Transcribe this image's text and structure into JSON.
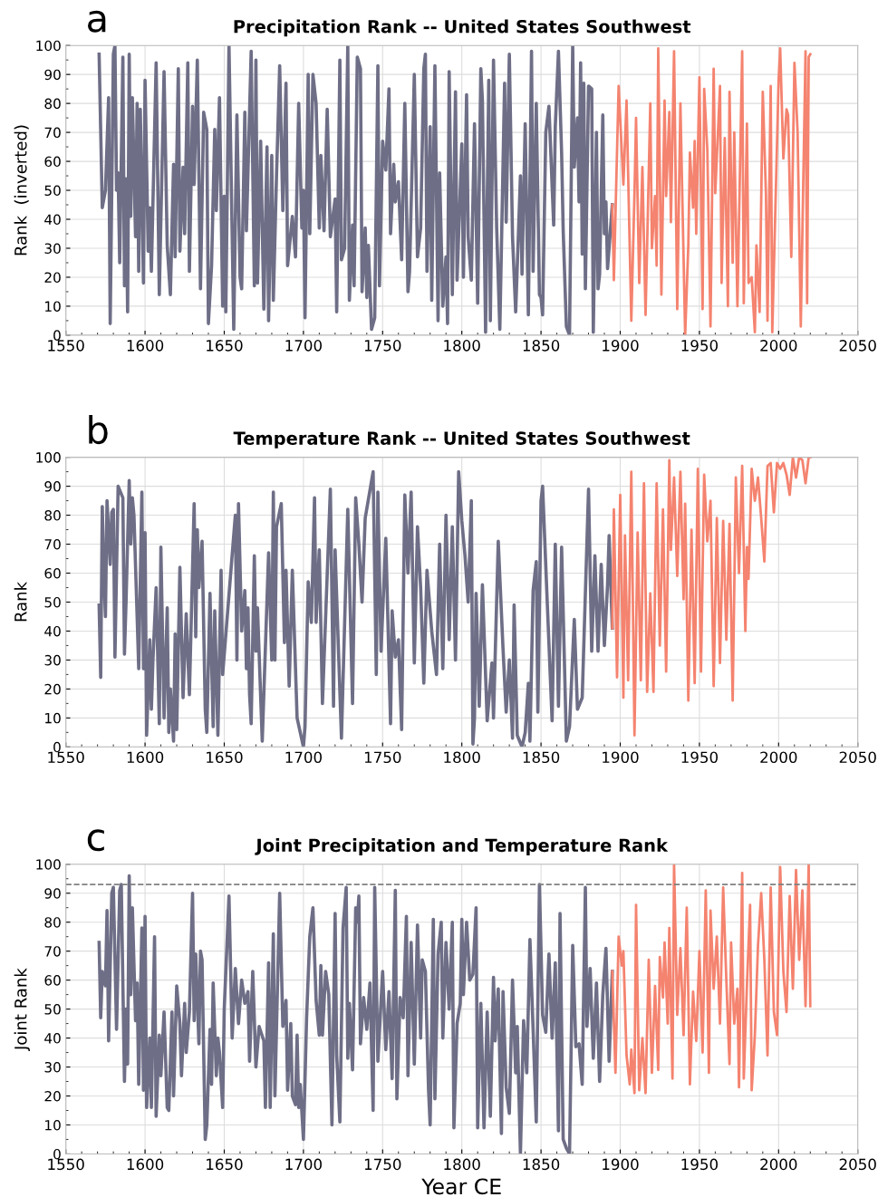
{
  "chart_data": [
    {
      "type": "line",
      "title": "Precipitation Rank -- United States Southwest",
      "ylabel": "Rank  (inverted)",
      "annotations": [
        "a"
      ],
      "xlim": [
        1550,
        2050
      ],
      "xticks": [
        1550,
        1600,
        1650,
        1700,
        1750,
        1800,
        1850,
        1900,
        1950,
        2000,
        2050
      ],
      "ylim": [
        0,
        100
      ],
      "yticks": [
        0,
        10,
        20,
        30,
        40,
        50,
        60,
        70,
        80,
        90,
        100
      ],
      "grid": true,
      "legend": false,
      "series": [
        {
          "color": "#6e6e87",
          "x": [
            1571,
            1573,
            1575,
            1577,
            1578,
            1580,
            1581,
            1582,
            1583,
            1584,
            1586,
            1587,
            1588,
            1589,
            1590,
            1591,
            1592,
            1594,
            1595,
            1596,
            1597,
            1599,
            1600,
            1602,
            1603,
            1604,
            1607,
            1609,
            1612,
            1614,
            1616,
            1618,
            1619,
            1621,
            1622,
            1624,
            1625,
            1627,
            1628,
            1630,
            1631,
            1633,
            1635,
            1637,
            1639,
            1640,
            1642,
            1644,
            1645,
            1647,
            1649,
            1650,
            1651,
            1653,
            1656,
            1658,
            1660,
            1661,
            1663,
            1664,
            1667,
            1669,
            1670,
            1671,
            1673,
            1675,
            1677,
            1678,
            1680,
            1681,
            1683,
            1685,
            1687,
            1689,
            1690,
            1693,
            1695,
            1697,
            1699,
            1700,
            1701,
            1703,
            1704,
            1706,
            1708,
            1710,
            1711,
            1713,
            1715,
            1717,
            1720,
            1721,
            1723,
            1724,
            1726,
            1728,
            1729,
            1731,
            1732,
            1734,
            1736,
            1737,
            1739,
            1740,
            1741,
            1743,
            1745,
            1747,
            1748,
            1750,
            1752,
            1754,
            1755,
            1757,
            1758,
            1760,
            1762,
            1764,
            1766,
            1767,
            1770,
            1772,
            1774,
            1776,
            1777,
            1778,
            1780,
            1781,
            1783,
            1785,
            1786,
            1788,
            1790,
            1791,
            1792,
            1794,
            1796,
            1797,
            1800,
            1801,
            1803,
            1804,
            1806,
            1808,
            1810,
            1812,
            1813,
            1815,
            1817,
            1818,
            1820,
            1822,
            1824,
            1827,
            1828,
            1830,
            1832,
            1834,
            1837,
            1838,
            1840,
            1842,
            1844,
            1845,
            1847,
            1849,
            1850,
            1851,
            1853,
            1855,
            1858,
            1859,
            1861,
            1863,
            1864,
            1866,
            1868,
            1870,
            1871,
            1873,
            1874,
            1875,
            1876,
            1877,
            1878,
            1880,
            1882,
            1883,
            1885,
            1886,
            1887,
            1889,
            1890,
            1891,
            1892,
            1895
          ],
          "values": [
            97,
            44,
            50,
            82,
            4,
            97,
            100,
            50,
            56,
            25,
            96,
            17,
            54,
            8,
            97,
            41,
            82,
            34,
            80,
            22,
            78,
            18,
            88,
            29,
            44,
            22,
            94,
            14,
            91,
            31,
            14,
            59,
            27,
            92,
            29,
            58,
            35,
            94,
            22,
            79,
            52,
            95,
            16,
            77,
            71,
            4,
            24,
            71,
            43,
            82,
            10,
            48,
            8,
            100,
            2,
            76,
            20,
            16,
            77,
            36,
            98,
            17,
            95,
            18,
            67,
            9,
            65,
            5,
            62,
            12,
            55,
            93,
            43,
            87,
            24,
            41,
            27,
            80,
            37,
            50,
            6,
            90,
            35,
            90,
            80,
            37,
            62,
            36,
            78,
            34,
            47,
            8,
            95,
            26,
            30,
            100,
            12,
            38,
            17,
            96,
            92,
            15,
            37,
            13,
            31,
            2,
            6,
            93,
            17,
            67,
            57,
            85,
            35,
            59,
            46,
            53,
            26,
            80,
            15,
            22,
            90,
            27,
            37,
            92,
            97,
            22,
            72,
            12,
            93,
            5,
            56,
            10,
            27,
            4,
            91,
            14,
            84,
            19,
            66,
            20,
            83,
            34,
            19,
            73,
            11,
            92,
            81,
            1,
            88,
            5,
            95,
            37,
            2,
            87,
            39,
            97,
            34,
            8,
            55,
            21,
            73,
            7,
            98,
            22,
            80,
            14,
            13,
            7,
            70,
            79,
            38,
            72,
            98,
            63,
            36,
            3,
            0,
            100,
            58,
            75,
            46,
            94,
            28,
            87,
            16,
            86,
            85,
            1,
            70,
            16,
            21,
            76,
            35,
            46,
            23,
            45
          ]
        },
        {
          "color": "#f4836f",
          "x": [
            1895,
            1896,
            1899,
            1902,
            1904,
            1907,
            1909,
            1910,
            1912,
            1914,
            1916,
            1919,
            1920,
            1922,
            1923,
            1924,
            1926,
            1928,
            1929,
            1931,
            1932,
            1934,
            1936,
            1938,
            1941,
            1943,
            1944,
            1946,
            1947,
            1948,
            1950,
            1952,
            1953,
            1955,
            1957,
            1959,
            1960,
            1963,
            1964,
            1966,
            1968,
            1969,
            1971,
            1972,
            1974,
            1977,
            1978,
            1980,
            1981,
            1983,
            1985,
            1986,
            1988,
            1990,
            1992,
            1993,
            1995,
            1996,
            2000,
            2001,
            2003,
            2005,
            2006,
            2008,
            2010,
            2012,
            2014,
            2017,
            2018,
            2019,
            2020
          ],
          "values": [
            45,
            19,
            86,
            52,
            81,
            5,
            49,
            75,
            18,
            58,
            7,
            80,
            30,
            48,
            24,
            99,
            14,
            81,
            48,
            77,
            39,
            98,
            9,
            80,
            0,
            31,
            63,
            44,
            67,
            35,
            89,
            9,
            85,
            64,
            3,
            92,
            49,
            86,
            18,
            68,
            10,
            84,
            25,
            70,
            10,
            98,
            11,
            73,
            18,
            20,
            1,
            31,
            8,
            84,
            49,
            5,
            86,
            1,
            88,
            99,
            61,
            78,
            76,
            27,
            94,
            70,
            3,
            98,
            11,
            96,
            97
          ]
        }
      ]
    },
    {
      "type": "line",
      "title": "Temperature Rank -- United States Southwest",
      "ylabel": "Rank",
      "annotations": [
        "b"
      ],
      "xlim": [
        1550,
        2050
      ],
      "xticks": [
        1550,
        1600,
        1650,
        1700,
        1750,
        1800,
        1850,
        1900,
        1950,
        2000,
        2050
      ],
      "ylim": [
        0,
        100
      ],
      "yticks": [
        0,
        10,
        20,
        30,
        40,
        50,
        60,
        70,
        80,
        90,
        100
      ],
      "grid": true,
      "legend": false,
      "series": [
        {
          "color": "#6e6e87",
          "x": [
            1571,
            1572,
            1573,
            1574,
            1575,
            1576,
            1578,
            1579,
            1580,
            1581,
            1583,
            1586,
            1587,
            1588,
            1590,
            1591,
            1592,
            1593,
            1595,
            1596,
            1598,
            1599,
            1600,
            1601,
            1603,
            1604,
            1605,
            1607,
            1609,
            1610,
            1612,
            1614,
            1615,
            1616,
            1618,
            1619,
            1620,
            1622,
            1624,
            1626,
            1628,
            1631,
            1632,
            1633,
            1634,
            1636,
            1638,
            1639,
            1641,
            1643,
            1644,
            1646,
            1648,
            1649,
            1657,
            1658,
            1659,
            1661,
            1663,
            1664,
            1665,
            1666,
            1667,
            1669,
            1670,
            1671,
            1674,
            1678,
            1680,
            1681,
            1682,
            1683,
            1686,
            1688,
            1689,
            1691,
            1693,
            1696,
            1700,
            1701,
            1703,
            1705,
            1707,
            1708,
            1710,
            1712,
            1717,
            1719,
            1720,
            1724,
            1728,
            1731,
            1733,
            1735,
            1737,
            1739,
            1744,
            1746,
            1747,
            1749,
            1752,
            1755,
            1756,
            1758,
            1760,
            1762,
            1764,
            1766,
            1768,
            1770,
            1772,
            1774,
            1776,
            1778,
            1781,
            1784,
            1786,
            1788,
            1790,
            1792,
            1794,
            1796,
            1798,
            1800,
            1802,
            1804,
            1806,
            1807,
            1808,
            1809,
            1811,
            1813,
            1816,
            1819,
            1820,
            1823,
            1826,
            1828,
            1830,
            1832,
            1833,
            1835,
            1838,
            1840,
            1842,
            1843,
            1845,
            1847,
            1848,
            1850,
            1851,
            1854,
            1857,
            1859,
            1861,
            1863,
            1866,
            1868,
            1871,
            1873,
            1876,
            1880,
            1882,
            1884,
            1886,
            1888,
            1890,
            1892,
            1893,
            1895
          ],
          "values": [
            49,
            24,
            83,
            60,
            45,
            85,
            63,
            81,
            82,
            31,
            90,
            86,
            32,
            50,
            92,
            70,
            86,
            80,
            45,
            27,
            88,
            27,
            74,
            4,
            37,
            13,
            30,
            55,
            8,
            69,
            10,
            48,
            5,
            20,
            2,
            39,
            6,
            62,
            17,
            46,
            18,
            84,
            38,
            75,
            55,
            71,
            13,
            5,
            53,
            7,
            47,
            4,
            61,
            25,
            80,
            30,
            84,
            40,
            54,
            27,
            48,
            18,
            8,
            66,
            33,
            48,
            2,
            67,
            30,
            88,
            30,
            76,
            84,
            36,
            61,
            21,
            61,
            10,
            0,
            7,
            57,
            43,
            86,
            43,
            68,
            15,
            89,
            14,
            68,
            3,
            82,
            15,
            86,
            70,
            50,
            79,
            95,
            25,
            88,
            33,
            72,
            8,
            47,
            31,
            37,
            6,
            87,
            60,
            88,
            29,
            76,
            55,
            22,
            61,
            40,
            25,
            70,
            27,
            80,
            37,
            76,
            30,
            95,
            78,
            66,
            50,
            85,
            1,
            10,
            53,
            14,
            56,
            9,
            29,
            10,
            71,
            34,
            12,
            30,
            3,
            49,
            4,
            0,
            5,
            22,
            2,
            54,
            64,
            12,
            85,
            90,
            49,
            9,
            70,
            14,
            69,
            2,
            7,
            44,
            13,
            17,
            89,
            33,
            66,
            33,
            63,
            35,
            56,
            73,
            41
          ]
        },
        {
          "color": "#f4836f",
          "x": [
            1895,
            1896,
            1898,
            1900,
            1902,
            1903,
            1905,
            1907,
            1909,
            1911,
            1913,
            1915,
            1917,
            1919,
            1921,
            1923,
            1925,
            1927,
            1929,
            1931,
            1932,
            1934,
            1936,
            1938,
            1940,
            1941,
            1943,
            1945,
            1947,
            1949,
            1951,
            1953,
            1955,
            1957,
            1959,
            1961,
            1963,
            1965,
            1967,
            1969,
            1971,
            1973,
            1975,
            1977,
            1979,
            1980,
            1981,
            1983,
            1985,
            1987,
            1989,
            1991,
            1993,
            1995,
            1997,
            1999,
            2001,
            2003,
            2005,
            2007,
            2009,
            2011,
            2013,
            2015,
            2017,
            2019,
            2020
          ],
          "values": [
            41,
            82,
            24,
            87,
            17,
            73,
            23,
            95,
            4,
            74,
            23,
            91,
            19,
            53,
            19,
            91,
            35,
            82,
            26,
            99,
            68,
            93,
            59,
            95,
            51,
            84,
            16,
            75,
            22,
            96,
            26,
            94,
            71,
            85,
            21,
            79,
            29,
            78,
            37,
            77,
            16,
            93,
            60,
            97,
            40,
            69,
            58,
            96,
            85,
            93,
            79,
            64,
            97,
            98,
            81,
            98,
            96,
            98,
            94,
            87,
            100,
            93,
            100,
            99,
            91,
            100,
            100
          ]
        }
      ]
    },
    {
      "type": "line",
      "title": "Joint Precipitation and Temperature Rank",
      "xlabel": "Year CE",
      "ylabel": "Joint Rank",
      "annotations": [
        "c"
      ],
      "xlim": [
        1550,
        2050
      ],
      "xticks": [
        1550,
        1600,
        1650,
        1700,
        1750,
        1800,
        1850,
        1900,
        1950,
        2000,
        2050
      ],
      "ylim": [
        0,
        100
      ],
      "yticks": [
        0,
        10,
        20,
        30,
        40,
        50,
        60,
        70,
        80,
        90,
        100
      ],
      "grid": true,
      "legend": false,
      "ref_lines": [
        {
          "axis": "y",
          "value": 93,
          "label": null,
          "color": "#808080",
          "line_style": "dashed"
        }
      ],
      "series": [
        {
          "color": "#6e6e87",
          "x": [
            1571,
            1572,
            1573,
            1575,
            1576,
            1577,
            1579,
            1580,
            1582,
            1584,
            1585,
            1587,
            1588,
            1589,
            1590,
            1591,
            1592,
            1594,
            1595,
            1596,
            1598,
            1599,
            1600,
            1601,
            1603,
            1604,
            1606,
            1607,
            1609,
            1610,
            1612,
            1614,
            1615,
            1617,
            1618,
            1620,
            1622,
            1623,
            1625,
            1626,
            1628,
            1630,
            1631,
            1632,
            1634,
            1635,
            1636,
            1638,
            1639,
            1641,
            1642,
            1643,
            1645,
            1646,
            1647,
            1649,
            1650,
            1653,
            1655,
            1657,
            1659,
            1661,
            1663,
            1665,
            1666,
            1668,
            1670,
            1672,
            1675,
            1676,
            1678,
            1679,
            1681,
            1682,
            1685,
            1687,
            1689,
            1690,
            1692,
            1693,
            1695,
            1696,
            1697,
            1698,
            1700,
            1702,
            1704,
            1706,
            1708,
            1710,
            1711,
            1712,
            1714,
            1716,
            1718,
            1720,
            1721,
            1723,
            1725,
            1727,
            1728,
            1729,
            1731,
            1733,
            1734,
            1735,
            1736,
            1738,
            1740,
            1742,
            1744,
            1745,
            1747,
            1750,
            1752,
            1754,
            1756,
            1758,
            1759,
            1761,
            1763,
            1765,
            1766,
            1768,
            1770,
            1772,
            1774,
            1775,
            1777,
            1779,
            1780,
            1782,
            1783,
            1785,
            1787,
            1788,
            1790,
            1792,
            1794,
            1795,
            1797,
            1799,
            1800,
            1801,
            1803,
            1805,
            1807,
            1809,
            1810,
            1812,
            1814,
            1816,
            1818,
            1820,
            1821,
            1823,
            1825,
            1826,
            1828,
            1830,
            1832,
            1834,
            1835,
            1837,
            1839,
            1841,
            1843,
            1845,
            1847,
            1849,
            1851,
            1853,
            1855,
            1857,
            1859,
            1861,
            1862,
            1864,
            1866,
            1868,
            1870,
            1872,
            1874,
            1876,
            1878,
            1879,
            1881,
            1883,
            1885,
            1887,
            1889,
            1891,
            1893,
            1895
          ],
          "values": [
            73,
            47,
            63,
            58,
            84,
            39,
            90,
            92,
            43,
            91,
            93,
            25,
            50,
            31,
            96,
            55,
            85,
            46,
            59,
            24,
            78,
            22,
            82,
            16,
            40,
            16,
            75,
            13,
            41,
            27,
            49,
            16,
            15,
            49,
            20,
            58,
            45,
            27,
            52,
            35,
            49,
            90,
            46,
            69,
            38,
            70,
            67,
            5,
            10,
            43,
            24,
            59,
            27,
            40,
            35,
            16,
            50,
            89,
            40,
            64,
            45,
            60,
            52,
            56,
            32,
            63,
            30,
            44,
            39,
            16,
            66,
            16,
            76,
            20,
            90,
            44,
            53,
            22,
            45,
            20,
            17,
            41,
            16,
            24,
            5,
            47,
            75,
            85,
            53,
            41,
            65,
            41,
            63,
            55,
            10,
            83,
            34,
            11,
            78,
            92,
            33,
            52,
            29,
            85,
            80,
            89,
            38,
            54,
            43,
            59,
            15,
            92,
            32,
            63,
            36,
            56,
            26,
            91,
            19,
            54,
            47,
            82,
            27,
            73,
            31,
            79,
            40,
            67,
            63,
            22,
            10,
            81,
            19,
            69,
            80,
            40,
            73,
            50,
            80,
            9,
            45,
            52,
            81,
            55,
            80,
            60,
            62,
            85,
            9,
            52,
            9,
            49,
            13,
            61,
            39,
            57,
            7,
            56,
            23,
            14,
            60,
            28,
            44,
            0,
            46,
            28,
            74,
            43,
            11,
            93,
            48,
            42,
            69,
            40,
            66,
            8,
            83,
            5,
            2,
            0,
            72,
            37,
            38,
            24,
            92,
            44,
            64,
            33,
            59,
            25,
            55,
            71,
            32,
            63
          ]
        },
        {
          "color": "#f4836f",
          "x": [
            1895,
            1897,
            1899,
            1901,
            1902,
            1904,
            1906,
            1907,
            1909,
            1910,
            1912,
            1914,
            1916,
            1918,
            1920,
            1922,
            1924,
            1925,
            1927,
            1928,
            1930,
            1931,
            1933,
            1934,
            1936,
            1938,
            1940,
            1942,
            1944,
            1946,
            1948,
            1950,
            1952,
            1954,
            1956,
            1957,
            1959,
            1961,
            1963,
            1965,
            1967,
            1969,
            1970,
            1972,
            1974,
            1975,
            1977,
            1978,
            1980,
            1982,
            1983,
            1985,
            1987,
            1989,
            1991,
            1993,
            1995,
            1997,
            1999,
            2001,
            2003,
            2005,
            2007,
            2009,
            2011,
            2013,
            2015,
            2017,
            2019,
            2020
          ],
          "values": [
            63,
            28,
            75,
            65,
            70,
            34,
            24,
            36,
            21,
            86,
            22,
            40,
            21,
            67,
            28,
            58,
            29,
            68,
            54,
            73,
            45,
            78,
            26,
            100,
            48,
            71,
            41,
            85,
            24,
            56,
            39,
            70,
            35,
            91,
            28,
            84,
            57,
            75,
            45,
            92,
            60,
            31,
            73,
            45,
            57,
            23,
            97,
            26,
            58,
            86,
            22,
            41,
            72,
            90,
            67,
            34,
            92,
            49,
            41,
            99,
            63,
            49,
            89,
            57,
            98,
            67,
            91,
            51,
            100,
            51
          ]
        }
      ]
    }
  ]
}
